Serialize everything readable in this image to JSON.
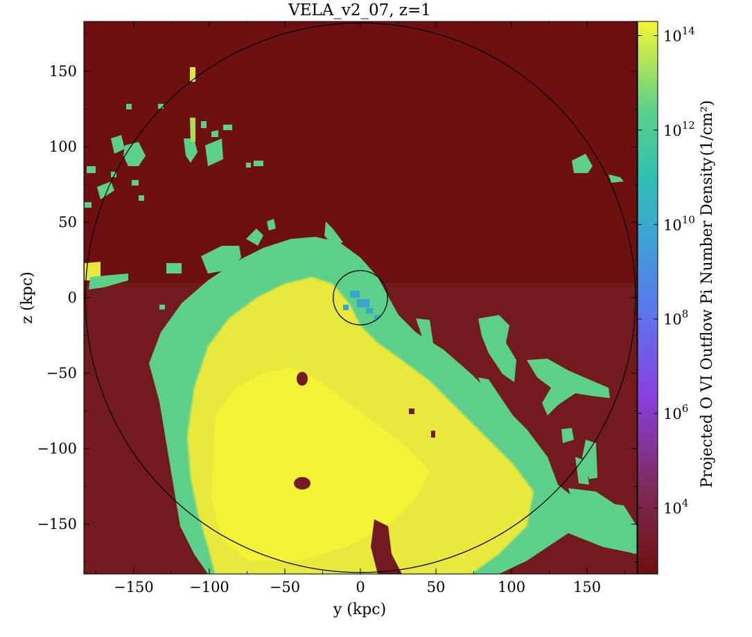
{
  "chart_data": {
    "type": "heatmap",
    "title": "VELA_v2_07, z=1",
    "xlabel": "y  (kpc)",
    "ylabel": "z  (kpc)",
    "colorbar_label": "Projected O VI Outflow Pi Number Density",
    "colorbar_unit": "(1/cm²)",
    "colorbar_scale": "log",
    "colormap": "plasma-to-viridis (dark red background for empty cells)",
    "xlim": [
      -183,
      183
    ],
    "ylim": [
      -183,
      183
    ],
    "x_ticks": [
      -150,
      -100,
      -50,
      0,
      50,
      100,
      150
    ],
    "x_tick_labels": [
      "−150",
      "−100",
      "−50",
      "0",
      "50",
      "100",
      "150"
    ],
    "y_ticks": [
      150,
      100,
      50,
      0,
      -50,
      -100,
      -150
    ],
    "y_tick_labels": [
      "150",
      "100",
      "50",
      "0",
      "−50",
      "−100",
      "−150"
    ],
    "colorbar_range_log10": [
      2.6,
      14.3
    ],
    "colorbar_ticks_log10": [
      14,
      12,
      10,
      8,
      6,
      4
    ],
    "colorbar_tick_labels": [
      "10",
      "10",
      "10",
      "10",
      "10",
      "10"
    ],
    "colorbar_tick_exponents": [
      "14",
      "12",
      "10",
      "8",
      "6",
      "4"
    ],
    "circles": [
      {
        "name": "virial-radius",
        "center": [
          0,
          0
        ],
        "radius_kpc": 182
      },
      {
        "name": "inner-radius",
        "center": [
          0,
          0
        ],
        "radius_kpc": 18
      }
    ],
    "background_color": "#6e1010",
    "high_density_color": "#f0ea3c",
    "mid_density_color": "#5cd08a"
  }
}
